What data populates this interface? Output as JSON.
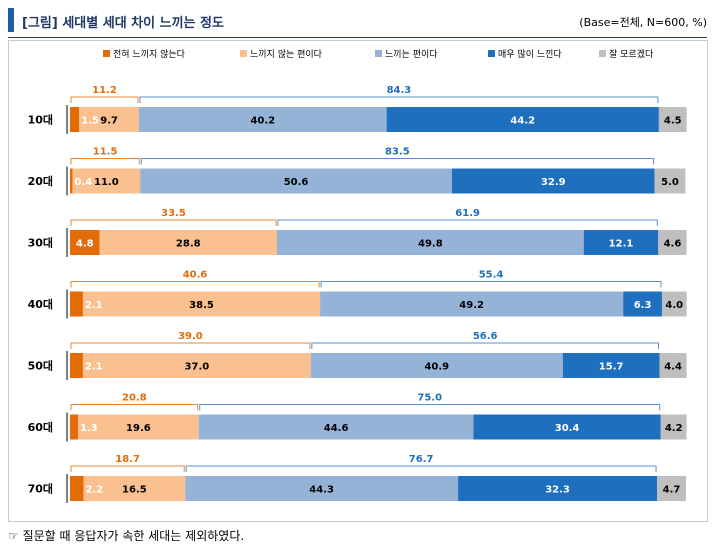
{
  "header": {
    "title": "[그림] 세대별 세대 차이 느끼는 정도",
    "note": "(Base=전체, N=600, %)"
  },
  "footnote": "☞ 질문할 때 응답자가 속한 세대는 제외하였다.",
  "colors": {
    "s1": "#e36c09",
    "s2": "#fac090",
    "s3": "#95b3d7",
    "s4": "#1f6fbf",
    "s5": "#bfbfbf",
    "bracket_left": "#e8893a",
    "bracket_right": "#5b8fcc",
    "label_left": "#e36c09",
    "label_right": "#1f6fbf"
  },
  "chart_data": {
    "type": "bar",
    "orientation": "horizontal",
    "stacked": true,
    "categories": [
      "10대",
      "20대",
      "30대",
      "40대",
      "50대",
      "60대",
      "70대"
    ],
    "series": [
      {
        "name": "전혀 느끼지 않는다",
        "values": [
          1.5,
          0.4,
          4.8,
          2.1,
          2.1,
          1.3,
          2.2
        ]
      },
      {
        "name": "느끼지 않는 편이다",
        "values": [
          9.7,
          11.0,
          28.8,
          38.5,
          37.0,
          19.6,
          16.5
        ]
      },
      {
        "name": "느끼는 편이다",
        "values": [
          40.2,
          50.6,
          49.8,
          49.2,
          40.9,
          44.6,
          44.3
        ]
      },
      {
        "name": "매우 많이 느낀다",
        "values": [
          44.2,
          32.9,
          12.1,
          6.3,
          15.7,
          30.4,
          32.3
        ]
      },
      {
        "name": "잘 모르겠다",
        "values": [
          4.5,
          5.0,
          4.6,
          4.0,
          4.4,
          4.2,
          4.7
        ]
      }
    ],
    "group_totals": {
      "not_feel": [
        11.2,
        11.5,
        33.5,
        40.6,
        39.0,
        20.8,
        18.7
      ],
      "feel": [
        84.3,
        83.5,
        61.9,
        55.4,
        56.6,
        75.0,
        76.7
      ]
    },
    "unit": "%",
    "legend_position": "top",
    "xlim": [
      0,
      100
    ]
  }
}
